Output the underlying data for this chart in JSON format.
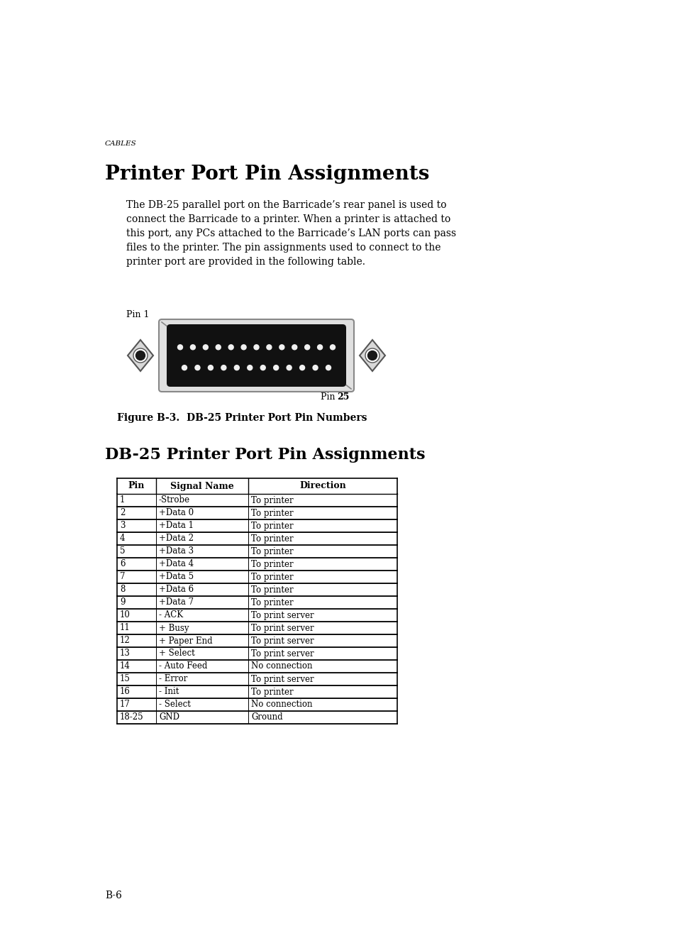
{
  "page_label": "CABLES",
  "title": "Printer Port Pin Assignments",
  "body_text_lines": [
    "The DB-25 parallel port on the Barricade’s rear panel is used to",
    "connect the Barricade to a printer. When a printer is attached to",
    "this port, any PCs attached to the Barricade’s LAN ports can pass",
    "files to the printer. The pin assignments used to connect to the",
    "printer port are provided in the following table."
  ],
  "figure_caption": "Figure B-3.  DB-25 Printer Port Pin Numbers",
  "table_title": "DB-25 Printer Port Pin Assignments",
  "table_headers": [
    "Pin",
    "Signal Name",
    "Direction"
  ],
  "table_rows": [
    [
      "1",
      "-Strobe",
      "To printer"
    ],
    [
      "2",
      "+Data 0",
      "To printer"
    ],
    [
      "3",
      "+Data 1",
      "To printer"
    ],
    [
      "4",
      "+Data 2",
      "To printer"
    ],
    [
      "5",
      "+Data 3",
      "To printer"
    ],
    [
      "6",
      "+Data 4",
      "To printer"
    ],
    [
      "7",
      "+Data 5",
      "To printer"
    ],
    [
      "8",
      "+Data 6",
      "To printer"
    ],
    [
      "9",
      "+Data 7",
      "To printer"
    ],
    [
      "10",
      "- ACK",
      "To print server"
    ],
    [
      "11",
      "+ Busy",
      "To print server"
    ],
    [
      "12",
      "+ Paper End",
      "To print server"
    ],
    [
      "13",
      "+ Select",
      "To print server"
    ],
    [
      "14",
      "- Auto Feed",
      "No connection"
    ],
    [
      "15",
      "- Error",
      "To print server"
    ],
    [
      "16",
      "- Init",
      "To printer"
    ],
    [
      "17",
      "- Select",
      "No connection"
    ],
    [
      "18-25",
      "GND",
      "Ground"
    ]
  ],
  "page_number": "B-6",
  "background_color": "#ffffff",
  "text_color": "#000000"
}
